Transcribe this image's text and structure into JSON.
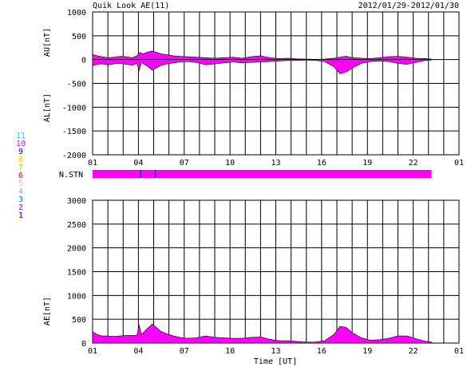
{
  "header": {
    "title": "Quik Look AE(11)",
    "date_range": "2012/01/29-2012/01/30"
  },
  "colors": {
    "fill": "#ff00ff",
    "axis": "#000000",
    "background": "#ffffff",
    "station_marker": "#000088"
  },
  "station_legend": [
    {
      "label": "11",
      "color": "#00e5ee"
    },
    {
      "label": "10",
      "color": "#ff00ff"
    },
    {
      "label": "9",
      "color": "#0000cc"
    },
    {
      "label": "8",
      "color": "#ffd700"
    },
    {
      "label": "7",
      "color": "#c8c800"
    },
    {
      "label": "6",
      "color": "#ff0000"
    },
    {
      "label": "5",
      "color": "#c0c0c0"
    },
    {
      "label": "4",
      "color": "#a0a0a0"
    },
    {
      "label": "3",
      "color": "#008b8b"
    },
    {
      "label": "2",
      "color": "#cc00cc"
    },
    {
      "label": "1",
      "color": "#0000aa"
    }
  ],
  "nstn": {
    "label": "N.STN",
    "start_hour": 1,
    "end_hour": 23.2,
    "markers": [
      4.15,
      5.1
    ]
  },
  "x_ticks": [
    "01",
    "04",
    "07",
    "10",
    "13",
    "16",
    "19",
    "22",
    "01"
  ],
  "x_title": "Time [UT]",
  "chart_data": [
    {
      "type": "area",
      "name": "AU/AL",
      "ylabel_upper": "AU[nT]",
      "ylabel_lower": "AL[nT]",
      "ylim": [
        -2000,
        1000
      ],
      "yticks": [
        "1000",
        "500",
        "0",
        "-500",
        "-1000",
        "-1500",
        "-2000"
      ],
      "xlim": [
        1,
        25
      ],
      "grid": true,
      "au": {
        "x": [
          1.0,
          1.3,
          1.6,
          2.0,
          2.4,
          2.8,
          3.2,
          3.6,
          3.9,
          4.1,
          4.3,
          4.6,
          4.9,
          5.2,
          5.5,
          5.9,
          6.3,
          6.7,
          7.2,
          7.8,
          8.4,
          9.0,
          9.6,
          10.2,
          10.8,
          11.4,
          12.0,
          12.6,
          13.2,
          13.8,
          14.4,
          15.0,
          15.6,
          16.2,
          16.8,
          17.2,
          17.6,
          18.0,
          18.6,
          19.2,
          19.8,
          20.4,
          21.0,
          21.6,
          22.2,
          22.8,
          23.2
        ],
        "y": [
          110,
          80,
          60,
          40,
          50,
          70,
          60,
          40,
          80,
          150,
          120,
          160,
          180,
          150,
          120,
          100,
          80,
          70,
          60,
          50,
          40,
          30,
          40,
          50,
          30,
          60,
          80,
          40,
          20,
          30,
          15,
          10,
          5,
          10,
          30,
          50,
          70,
          40,
          30,
          20,
          40,
          60,
          70,
          50,
          30,
          20,
          10
        ]
      },
      "al": {
        "x": [
          1.0,
          1.3,
          1.6,
          2.0,
          2.4,
          2.8,
          3.2,
          3.6,
          3.9,
          4.05,
          4.2,
          4.5,
          4.9,
          5.2,
          5.5,
          5.9,
          6.3,
          6.7,
          7.2,
          7.8,
          8.4,
          9.0,
          9.6,
          10.2,
          10.8,
          11.4,
          12.0,
          12.6,
          13.2,
          13.8,
          14.4,
          15.0,
          15.6,
          16.2,
          16.8,
          17.2,
          17.6,
          18.0,
          18.6,
          19.2,
          19.8,
          20.4,
          21.0,
          21.6,
          22.2,
          22.8,
          23.2
        ],
        "y": [
          -130,
          -100,
          -90,
          -110,
          -90,
          -80,
          -100,
          -120,
          -80,
          -230,
          -60,
          -120,
          -220,
          -170,
          -120,
          -90,
          -70,
          -50,
          -40,
          -60,
          -110,
          -90,
          -70,
          -50,
          -70,
          -60,
          -50,
          -40,
          -30,
          -20,
          -20,
          -10,
          -20,
          -40,
          -150,
          -300,
          -260,
          -180,
          -80,
          -40,
          -30,
          -40,
          -80,
          -100,
          -60,
          -20,
          -10
        ]
      }
    },
    {
      "type": "area",
      "name": "AE",
      "ylabel": "AE[nT]",
      "ylim": [
        0,
        3000
      ],
      "yticks": [
        "3000",
        "2500",
        "2000",
        "1500",
        "1000",
        "500",
        "0"
      ],
      "xlim": [
        1,
        25
      ],
      "grid": true,
      "x": [
        1.0,
        1.3,
        1.6,
        2.0,
        2.4,
        2.8,
        3.2,
        3.6,
        3.9,
        4.05,
        4.2,
        4.5,
        4.9,
        5.2,
        5.5,
        5.9,
        6.3,
        6.7,
        7.2,
        7.8,
        8.4,
        9.0,
        9.6,
        10.2,
        10.8,
        11.4,
        12.0,
        12.6,
        13.2,
        13.8,
        14.4,
        15.0,
        15.6,
        16.2,
        16.8,
        17.2,
        17.6,
        18.0,
        18.6,
        19.2,
        19.8,
        20.4,
        21.0,
        21.6,
        22.2,
        22.8,
        23.2
      ],
      "y": [
        240,
        180,
        150,
        150,
        140,
        150,
        160,
        160,
        160,
        380,
        180,
        280,
        400,
        320,
        240,
        190,
        150,
        120,
        100,
        110,
        150,
        120,
        110,
        100,
        100,
        120,
        130,
        80,
        50,
        50,
        35,
        20,
        25,
        50,
        180,
        350,
        330,
        220,
        110,
        60,
        70,
        100,
        150,
        150,
        90,
        40,
        20
      ]
    }
  ]
}
